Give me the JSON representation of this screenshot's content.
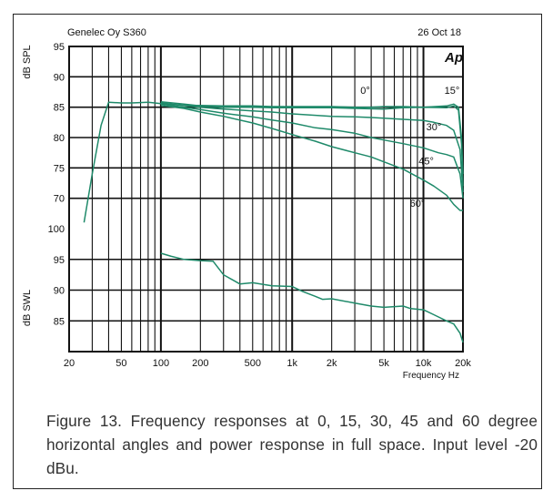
{
  "header": {
    "left": "Genelec Oy S360",
    "right": "26 Oct 18",
    "logo": "Ap"
  },
  "caption": "Figure 13. Frequency responses at 0, 15, 30, 45 and 60 degree horizontal angles and power response in full space. Input level -20 dBu.",
  "colors": {
    "curve": "#1f8a6a",
    "grid": "#111111",
    "text": "#111111"
  },
  "chart_data": {
    "type": "line",
    "xscale": "log",
    "xlim": [
      20,
      20000
    ],
    "xlabel": "Frequency Hz",
    "xticks": [
      {
        "v": 20,
        "label": "20"
      },
      {
        "v": 50,
        "label": "50"
      },
      {
        "v": 100,
        "label": "100"
      },
      {
        "v": 200,
        "label": "200"
      },
      {
        "v": 500,
        "label": "500"
      },
      {
        "v": 1000,
        "label": "1k"
      },
      {
        "v": 2000,
        "label": "2k"
      },
      {
        "v": 5000,
        "label": "5k"
      },
      {
        "v": 10000,
        "label": "10k"
      },
      {
        "v": 20000,
        "label": "20k"
      }
    ],
    "upper_axis": {
      "label": "dB SPL",
      "ylim": [
        65,
        95
      ],
      "ticks": [
        70,
        75,
        80,
        85,
        90,
        95
      ]
    },
    "lower_axis": {
      "label": "dB SWL",
      "ylim": [
        80,
        100
      ],
      "ticks": [
        85,
        90,
        95,
        100
      ]
    },
    "series": [
      {
        "name": "0°",
        "axis": "upper",
        "data": [
          [
            26,
            66
          ],
          [
            30,
            74
          ],
          [
            35,
            82
          ],
          [
            40,
            85.8
          ],
          [
            50,
            85.7
          ],
          [
            60,
            85.7
          ],
          [
            80,
            85.8
          ],
          [
            100,
            85.6
          ],
          [
            150,
            85.3
          ],
          [
            200,
            85.3
          ],
          [
            300,
            85.2
          ],
          [
            500,
            85.2
          ],
          [
            700,
            85.1
          ],
          [
            1000,
            85.1
          ],
          [
            2000,
            85.1
          ],
          [
            3000,
            85.0
          ],
          [
            4000,
            85.0
          ],
          [
            5000,
            85.1
          ],
          [
            7000,
            85.1
          ],
          [
            10000,
            85.0
          ],
          [
            15000,
            85.2
          ],
          [
            17000,
            85.5
          ],
          [
            18500,
            85.0
          ],
          [
            19500,
            80
          ],
          [
            20000,
            74
          ]
        ]
      },
      {
        "name": "15°",
        "axis": "upper",
        "data": [
          [
            100,
            85.9
          ],
          [
            150,
            85.5
          ],
          [
            200,
            85.2
          ],
          [
            300,
            85.0
          ],
          [
            500,
            85.0
          ],
          [
            700,
            84.9
          ],
          [
            1000,
            84.9
          ],
          [
            2000,
            84.9
          ],
          [
            3000,
            84.8
          ],
          [
            5000,
            84.7
          ],
          [
            7000,
            84.9
          ],
          [
            10000,
            85.0
          ],
          [
            15000,
            84.9
          ],
          [
            17000,
            85.2
          ],
          [
            18500,
            84.5
          ],
          [
            19500,
            79
          ],
          [
            20000,
            72
          ]
        ]
      },
      {
        "name": "30°",
        "axis": "upper",
        "data": [
          [
            100,
            85.7
          ],
          [
            150,
            85.3
          ],
          [
            200,
            85.0
          ],
          [
            300,
            84.7
          ],
          [
            500,
            84.4
          ],
          [
            700,
            84.2
          ],
          [
            1000,
            83.9
          ],
          [
            2000,
            83.5
          ],
          [
            3000,
            83.4
          ],
          [
            4000,
            83.3
          ],
          [
            5000,
            83.2
          ],
          [
            7000,
            83.0
          ],
          [
            10000,
            82.8
          ],
          [
            12000,
            82.5
          ],
          [
            15000,
            82.0
          ],
          [
            17000,
            81.2
          ],
          [
            19000,
            78
          ],
          [
            20000,
            71
          ]
        ]
      },
      {
        "name": "45°",
        "axis": "upper",
        "data": [
          [
            100,
            85.5
          ],
          [
            150,
            85.0
          ],
          [
            200,
            84.6
          ],
          [
            300,
            84.0
          ],
          [
            500,
            83.4
          ],
          [
            700,
            82.9
          ],
          [
            1000,
            82.4
          ],
          [
            1500,
            81.6
          ],
          [
            2000,
            81.3
          ],
          [
            3000,
            80.7
          ],
          [
            4000,
            80.0
          ],
          [
            5000,
            79.6
          ],
          [
            7000,
            79.0
          ],
          [
            10000,
            78.3
          ],
          [
            13000,
            77.5
          ],
          [
            15000,
            77.2
          ],
          [
            17000,
            76.8
          ],
          [
            19000,
            74
          ],
          [
            20000,
            70
          ]
        ]
      },
      {
        "name": "60°",
        "axis": "upper",
        "data": [
          [
            100,
            85.3
          ],
          [
            150,
            84.8
          ],
          [
            200,
            84.2
          ],
          [
            300,
            83.5
          ],
          [
            500,
            82.4
          ],
          [
            700,
            81.5
          ],
          [
            1000,
            80.5
          ],
          [
            1500,
            79.4
          ],
          [
            2000,
            78.5
          ],
          [
            3000,
            77.5
          ],
          [
            4000,
            76.8
          ],
          [
            5000,
            76.0
          ],
          [
            7000,
            74.8
          ],
          [
            10000,
            73.0
          ],
          [
            12000,
            72.0
          ],
          [
            15000,
            70.5
          ],
          [
            17000,
            69.0
          ],
          [
            19000,
            68
          ],
          [
            20000,
            68
          ]
        ]
      },
      {
        "name": "power",
        "axis": "lower",
        "data": [
          [
            100,
            96.0
          ],
          [
            120,
            95.5
          ],
          [
            150,
            95.0
          ],
          [
            200,
            94.8
          ],
          [
            250,
            94.7
          ],
          [
            300,
            92.5
          ],
          [
            400,
            91.0
          ],
          [
            500,
            91.2
          ],
          [
            700,
            90.7
          ],
          [
            1000,
            90.6
          ],
          [
            1200,
            89.8
          ],
          [
            1500,
            89.0
          ],
          [
            1700,
            88.5
          ],
          [
            2000,
            88.6
          ],
          [
            3000,
            87.9
          ],
          [
            4000,
            87.4
          ],
          [
            5000,
            87.2
          ],
          [
            7000,
            87.4
          ],
          [
            8000,
            87.0
          ],
          [
            10000,
            86.8
          ],
          [
            12000,
            86.0
          ],
          [
            15000,
            85.0
          ],
          [
            17000,
            84.5
          ],
          [
            19000,
            83.0
          ],
          [
            20000,
            81.5
          ]
        ]
      }
    ],
    "annotations": [
      {
        "text": "0°",
        "f": 3600,
        "db": 87.2
      },
      {
        "text": "15°",
        "f": 16500,
        "db": 87.2
      },
      {
        "text": "30°",
        "f": 12000,
        "db": 81.2
      },
      {
        "text": "45°",
        "f": 10500,
        "db": 75.6
      },
      {
        "text": "60°",
        "f": 9000,
        "db": 68.6
      }
    ]
  }
}
